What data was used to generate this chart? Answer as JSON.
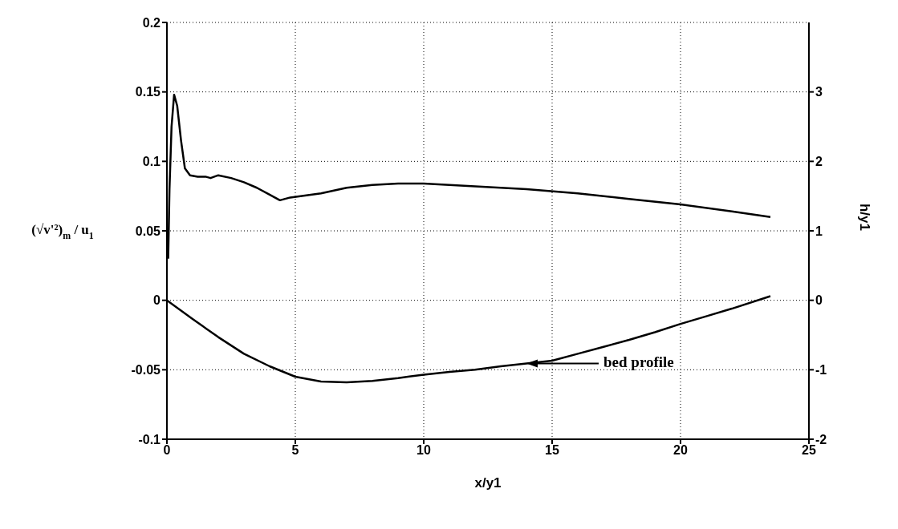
{
  "chart_data": {
    "type": "line",
    "xlabel": "x/y1",
    "ylabel": "(√v'²)$_{m}$ / u$_{1}$",
    "y2label": "h/y1",
    "xlim": [
      0,
      25
    ],
    "xticks": [
      0,
      5,
      10,
      15,
      20,
      25
    ],
    "ylim": [
      -0.1,
      0.2
    ],
    "yticks": [
      -0.1,
      -0.05,
      0,
      0.05,
      0.1,
      0.15,
      0.2
    ],
    "y2lim": [
      -2,
      4
    ],
    "y2ticks": [
      -2,
      -1,
      0,
      1,
      2,
      3
    ],
    "grid": true,
    "legend": false,
    "marker": "none",
    "line_style": "solid",
    "annotations": [
      "bed profile"
    ],
    "series": [
      {
        "color": "#000000",
        "x": [
          0.05,
          0.1,
          0.18,
          0.28,
          0.4,
          0.55,
          0.7,
          0.9,
          1.2,
          1.5,
          1.7,
          2.0,
          2.5,
          3.0,
          3.5,
          4.0,
          4.4,
          4.8,
          6,
          7,
          8,
          9,
          10,
          11,
          12,
          14,
          16,
          18,
          20,
          22,
          23.5
        ],
        "values": [
          0.03,
          0.08,
          0.125,
          0.148,
          0.14,
          0.115,
          0.095,
          0.09,
          0.089,
          0.089,
          0.088,
          0.09,
          0.088,
          0.085,
          0.081,
          0.076,
          0.072,
          0.074,
          0.077,
          0.081,
          0.083,
          0.084,
          0.084,
          0.083,
          0.082,
          0.08,
          0.077,
          0.073,
          0.069,
          0.064,
          0.06
        ]
      },
      {
        "color": "#000000",
        "axis": "y2",
        "x": [
          0,
          1,
          2,
          3,
          4,
          5,
          6,
          7,
          8,
          9,
          10,
          11,
          12,
          13,
          14,
          15,
          16,
          17,
          18,
          19,
          20,
          21,
          22,
          23.5
        ],
        "values": [
          0,
          -0.27,
          -0.53,
          -0.77,
          -0.95,
          -1.1,
          -1.17,
          -1.18,
          -1.16,
          -1.12,
          -1.07,
          -1.03,
          -1.0,
          -0.95,
          -0.91,
          -0.87,
          -0.77,
          -0.67,
          -0.57,
          -0.46,
          -0.34,
          -0.23,
          -0.12,
          0.06
        ]
      }
    ]
  }
}
